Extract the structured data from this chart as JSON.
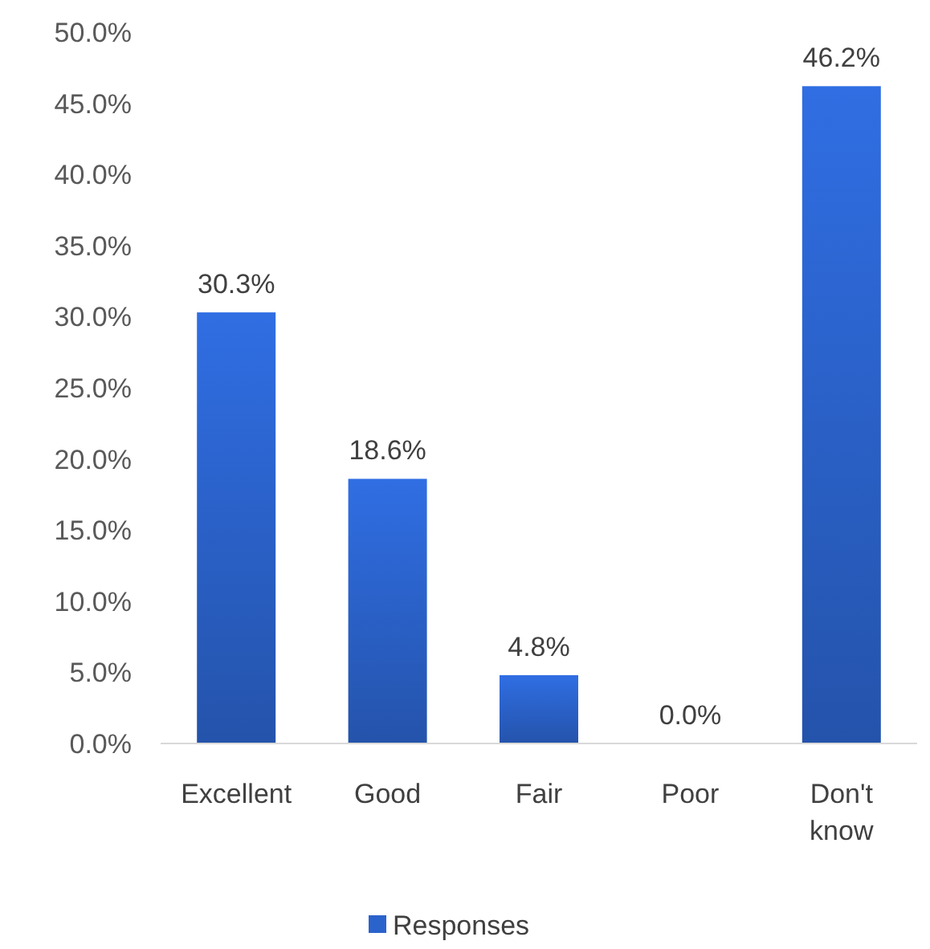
{
  "chart_data": {
    "type": "bar",
    "categories": [
      "Excellent",
      "Good",
      "Fair",
      "Poor",
      "Don't know"
    ],
    "series": [
      {
        "name": "Responses",
        "color": "#2b63cc",
        "values": [
          30.3,
          18.6,
          4.8,
          0.0,
          46.2
        ],
        "value_labels": [
          "30.3%",
          "18.6%",
          "4.8%",
          "0.0%",
          "46.2%"
        ]
      }
    ],
    "ylim": [
      0,
      50
    ],
    "yticks": [
      {
        "value": 0,
        "label": "0.0%"
      },
      {
        "value": 5,
        "label": "5.0%"
      },
      {
        "value": 10,
        "label": "10.0%"
      },
      {
        "value": 15,
        "label": "15.0%"
      },
      {
        "value": 20,
        "label": "20.0%"
      },
      {
        "value": 25,
        "label": "25.0%"
      },
      {
        "value": 30,
        "label": "30.0%"
      },
      {
        "value": 35,
        "label": "35.0%"
      },
      {
        "value": 40,
        "label": "40.0%"
      },
      {
        "value": 45,
        "label": "45.0%"
      },
      {
        "value": 50,
        "label": "50.0%"
      }
    ],
    "grid": false,
    "legend": "bottom"
  }
}
